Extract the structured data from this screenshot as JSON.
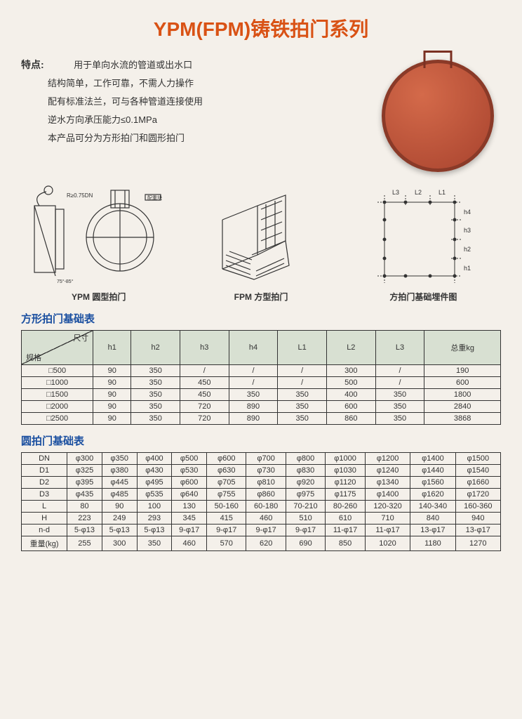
{
  "title": "YPM(FPM)铸铁拍门系列",
  "featureLabel": "特点:",
  "features": [
    "用于单向水流的管道或出水口",
    "结构简单，工作可靠，不需人力操作",
    "配有标准法兰，可与各种管道连接使用",
    "逆水方向承压能力≤0.1MPa",
    "本产品可分为方形拍门和圆形拍门"
  ],
  "diagramLabels": {
    "d1": "YPM 圆型拍门",
    "d2": "FPM 方型拍门",
    "d3": "方拍门基础埋件图"
  },
  "table1": {
    "title": "方形拍门基础表",
    "cornerTop": "尺寸",
    "cornerBottom": "规格",
    "headers": [
      "h1",
      "h2",
      "h3",
      "h4",
      "L1",
      "L2",
      "L3",
      "总重kg"
    ],
    "rows": [
      [
        "□500",
        "90",
        "350",
        "/",
        "/",
        "/",
        "300",
        "/",
        "190"
      ],
      [
        "□1000",
        "90",
        "350",
        "450",
        "/",
        "/",
        "500",
        "/",
        "600"
      ],
      [
        "□1500",
        "90",
        "350",
        "450",
        "350",
        "350",
        "400",
        "350",
        "1800"
      ],
      [
        "□2000",
        "90",
        "350",
        "720",
        "890",
        "350",
        "600",
        "350",
        "2840"
      ],
      [
        "□2500",
        "90",
        "350",
        "720",
        "890",
        "350",
        "860",
        "350",
        "3868"
      ]
    ]
  },
  "table2": {
    "title": "圆拍门基础表",
    "rowHeaders": [
      "DN",
      "D1",
      "D2",
      "D3",
      "L",
      "H",
      "n-d",
      "重量(kg)"
    ],
    "rows": [
      [
        "φ300",
        "φ350",
        "φ400",
        "φ500",
        "φ600",
        "φ700",
        "φ800",
        "φ1000",
        "φ1200",
        "φ1400",
        "φ1500"
      ],
      [
        "φ325",
        "φ380",
        "φ430",
        "φ530",
        "φ630",
        "φ730",
        "φ830",
        "φ1030",
        "φ1240",
        "φ1440",
        "φ1540"
      ],
      [
        "φ395",
        "φ445",
        "φ495",
        "φ600",
        "φ705",
        "φ810",
        "φ920",
        "φ1120",
        "φ1340",
        "φ1560",
        "φ1660"
      ],
      [
        "φ435",
        "φ485",
        "φ535",
        "φ640",
        "φ755",
        "φ860",
        "φ975",
        "φ1175",
        "φ1400",
        "φ1620",
        "φ1720"
      ],
      [
        "80",
        "90",
        "100",
        "130",
        "50-160",
        "60-180",
        "70-210",
        "80-260",
        "120-320",
        "140-340",
        "160-360"
      ],
      [
        "223",
        "249",
        "293",
        "345",
        "415",
        "460",
        "510",
        "610",
        "710",
        "840",
        "940"
      ],
      [
        "5-φ13",
        "5-φ13",
        "5-φ13",
        "9-φ17",
        "9-φ17",
        "9-φ17",
        "9-φ17",
        "11-φ17",
        "11-φ17",
        "13-φ17",
        "13-φ17"
      ],
      [
        "255",
        "300",
        "350",
        "460",
        "570",
        "620",
        "690",
        "850",
        "1020",
        "1180",
        "1270"
      ]
    ]
  },
  "colors": {
    "title": "#d95215",
    "section": "#1a4fa0",
    "border": "#333333"
  }
}
